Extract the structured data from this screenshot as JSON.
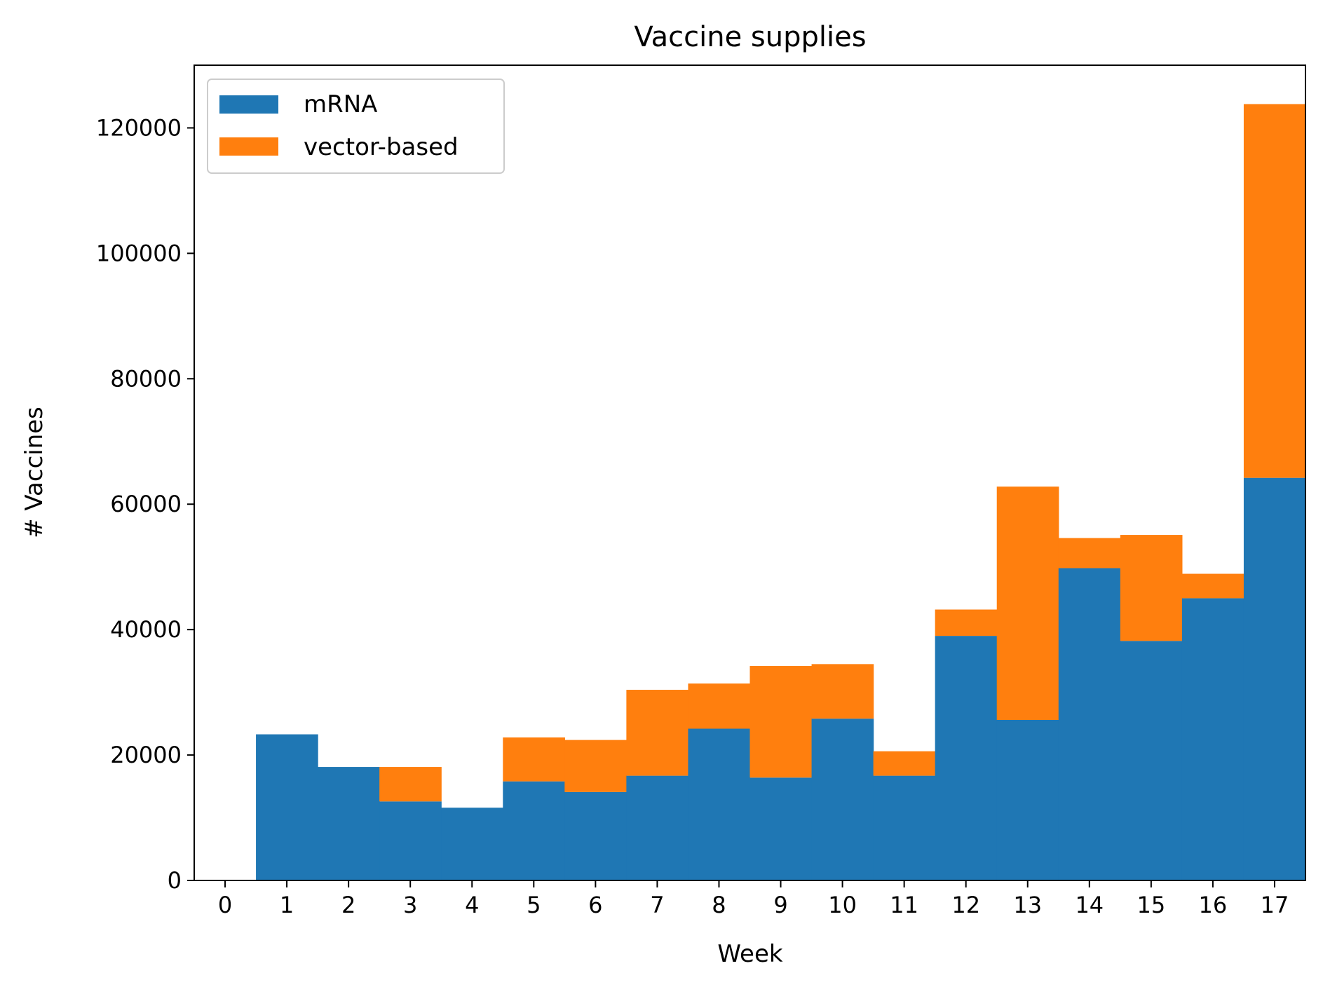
{
  "chart_data": {
    "type": "bar",
    "stacked": true,
    "title": "Vaccine supplies",
    "xlabel": "Week",
    "ylabel": "# Vaccines",
    "categories": [
      "0",
      "1",
      "2",
      "3",
      "4",
      "5",
      "6",
      "7",
      "8",
      "9",
      "10",
      "11",
      "12",
      "13",
      "14",
      "15",
      "16",
      "17"
    ],
    "series": [
      {
        "name": "mRNA",
        "color": "#1f77b4",
        "values": [
          0,
          23300,
          18100,
          12600,
          11600,
          15800,
          14100,
          16700,
          24200,
          16400,
          25800,
          16700,
          39000,
          25600,
          49800,
          38200,
          45000,
          64200
        ]
      },
      {
        "name": "vector-based",
        "color": "#ff7f0e",
        "values": [
          0,
          0,
          0,
          5500,
          0,
          7000,
          8300,
          13700,
          7200,
          17800,
          8700,
          3900,
          4200,
          37200,
          4800,
          16900,
          3900,
          59600
        ]
      }
    ],
    "ylim": [
      0,
      130000
    ],
    "xlim": [
      -0.5,
      17.5
    ],
    "yticks": [
      0,
      20000,
      40000,
      60000,
      80000,
      100000,
      120000
    ],
    "grid": false,
    "legend": "top-left"
  }
}
